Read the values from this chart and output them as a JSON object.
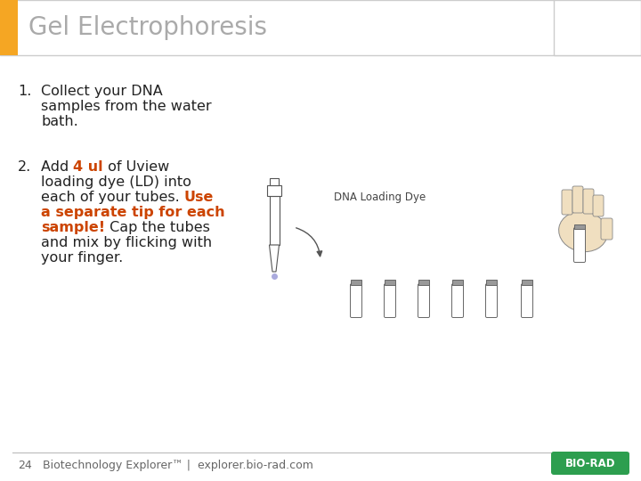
{
  "title": "Gel Electrophoresis",
  "title_color": "#aaaaaa",
  "title_fontsize": 20,
  "orange_bar_color": "#F5A623",
  "header_bg": "#ffffff",
  "header_border_color": "#cccccc",
  "body_bg": "#ffffff",
  "text_color": "#222222",
  "text_fontsize": 11.5,
  "highlight_color": "#cc4400",
  "footer_text_num": "24",
  "footer_text_main": "Biotechnology Explorer™ |  explorer.bio-rad.com",
  "footer_fontsize": 9,
  "footer_color": "#666666",
  "dna_label": "DNA Loading Dye",
  "dna_label_color": "#444444",
  "dna_label_fontsize": 8.5,
  "footer_line_color": "#bbbbbb",
  "bio_rad_color": "#2d9e4f",
  "bio_rad_text": "BIO-RAD",
  "step1_lines": [
    "1. Collect your DNA",
    "    samples from the water",
    "    bath."
  ],
  "step2_parts": [
    {
      "text": "2. Add ",
      "bold": false,
      "color": "normal"
    },
    {
      "text": "4 ul",
      "bold": true,
      "color": "highlight"
    },
    {
      "text": " of Uview",
      "bold": false,
      "color": "normal"
    }
  ],
  "step2_line2": "    loading dye (LD) into",
  "step2_line3_a": "    each of your tubes. ",
  "step2_line3_b": "Use",
  "step2_line4": "    a separate tip for each",
  "step2_line5_a": "    ",
  "step2_line5_b": "sample!",
  "step2_line5_c": " Cap the tubes",
  "step2_line6": "    and mix by flicking with",
  "step2_line7": "    your finger."
}
